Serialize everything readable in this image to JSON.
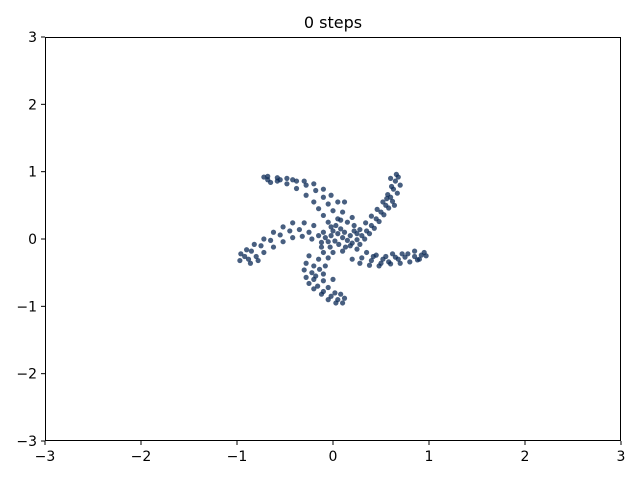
{
  "chart_data": {
    "type": "scatter",
    "title": "0 steps",
    "xlabel": "",
    "ylabel": "",
    "xlim": [
      -3,
      3
    ],
    "ylim": [
      -3,
      3
    ],
    "xticks": [
      -3,
      -2,
      -1,
      0,
      1,
      2,
      3
    ],
    "yticks": [
      -3,
      -2,
      -1,
      0,
      1,
      2,
      3
    ],
    "tick_labels_x": [
      "−3",
      "−2",
      "−1",
      "0",
      "1",
      "2",
      "3"
    ],
    "tick_labels_y": [
      "−3",
      "−2",
      "−1",
      "0",
      "1",
      "2",
      "3"
    ],
    "grid": false,
    "legend": "none",
    "point_color": "#0b2a55",
    "series": [
      {
        "points": [
          [
            0.05,
            0.08
          ],
          [
            0.1,
            0.02
          ],
          [
            0.02,
            -0.03
          ],
          [
            0.12,
            0.1
          ],
          [
            -0.02,
            0.05
          ],
          [
            0.15,
            -0.02
          ],
          [
            0.06,
            -0.08
          ],
          [
            -0.05,
            -0.04
          ],
          [
            0.18,
            0.05
          ],
          [
            0.08,
            0.15
          ],
          [
            0.0,
            0.12
          ],
          [
            -0.08,
            0.02
          ],
          [
            0.2,
            -0.06
          ],
          [
            0.13,
            -0.12
          ],
          [
            -0.03,
            -0.12
          ],
          [
            0.22,
            0.12
          ],
          [
            0.03,
            0.2
          ],
          [
            -0.1,
            0.1
          ],
          [
            0.25,
            -0.01
          ],
          [
            0.1,
            -0.18
          ],
          [
            0.3,
            0.05
          ],
          [
            0.35,
            0.12
          ],
          [
            0.4,
            0.2
          ],
          [
            0.45,
            0.3
          ],
          [
            0.5,
            0.4
          ],
          [
            0.55,
            0.5
          ],
          [
            0.6,
            0.62
          ],
          [
            0.63,
            0.74
          ],
          [
            0.65,
            0.86
          ],
          [
            0.66,
            0.96
          ],
          [
            0.33,
            0.0
          ],
          [
            0.38,
            0.08
          ],
          [
            0.43,
            0.16
          ],
          [
            0.48,
            0.26
          ],
          [
            0.53,
            0.36
          ],
          [
            0.58,
            0.46
          ],
          [
            0.62,
            0.56
          ],
          [
            0.67,
            0.68
          ],
          [
            0.7,
            0.8
          ],
          [
            0.68,
            0.92
          ],
          [
            0.28,
            0.14
          ],
          [
            0.34,
            0.24
          ],
          [
            0.4,
            0.34
          ],
          [
            0.46,
            0.44
          ],
          [
            0.52,
            0.55
          ],
          [
            0.57,
            0.66
          ],
          [
            0.61,
            0.78
          ],
          [
            0.6,
            0.9
          ],
          [
            0.56,
            0.6
          ],
          [
            0.64,
            0.5
          ],
          [
            0.25,
            -0.15
          ],
          [
            0.35,
            -0.2
          ],
          [
            0.45,
            -0.24
          ],
          [
            0.55,
            -0.26
          ],
          [
            0.65,
            -0.27
          ],
          [
            0.75,
            -0.27
          ],
          [
            0.85,
            -0.26
          ],
          [
            0.92,
            -0.24
          ],
          [
            0.97,
            -0.25
          ],
          [
            0.9,
            -0.3
          ],
          [
            0.3,
            -0.28
          ],
          [
            0.4,
            -0.32
          ],
          [
            0.5,
            -0.36
          ],
          [
            0.6,
            -0.37
          ],
          [
            0.7,
            -0.36
          ],
          [
            0.8,
            -0.34
          ],
          [
            0.88,
            -0.31
          ],
          [
            0.95,
            -0.2
          ],
          [
            0.85,
            -0.18
          ],
          [
            0.72,
            -0.22
          ],
          [
            0.2,
            -0.3
          ],
          [
            0.28,
            -0.36
          ],
          [
            0.38,
            -0.39
          ],
          [
            0.48,
            -0.4
          ],
          [
            0.58,
            -0.34
          ],
          [
            0.68,
            -0.3
          ],
          [
            0.78,
            -0.22
          ],
          [
            0.62,
            -0.22
          ],
          [
            0.52,
            -0.3
          ],
          [
            0.42,
            -0.26
          ],
          [
            -0.1,
            -0.2
          ],
          [
            -0.15,
            -0.3
          ],
          [
            -0.2,
            -0.4
          ],
          [
            -0.22,
            -0.5
          ],
          [
            -0.2,
            -0.6
          ],
          [
            -0.16,
            -0.7
          ],
          [
            -0.1,
            -0.78
          ],
          [
            -0.02,
            -0.85
          ],
          [
            0.05,
            -0.9
          ],
          [
            0.1,
            -0.95
          ],
          [
            -0.25,
            -0.25
          ],
          [
            -0.28,
            -0.36
          ],
          [
            -0.3,
            -0.46
          ],
          [
            -0.28,
            -0.57
          ],
          [
            -0.25,
            -0.66
          ],
          [
            -0.2,
            -0.74
          ],
          [
            -0.12,
            -0.82
          ],
          [
            -0.05,
            -0.9
          ],
          [
            0.03,
            -0.95
          ],
          [
            0.12,
            -0.88
          ],
          [
            -0.05,
            -0.28
          ],
          [
            -0.08,
            -0.4
          ],
          [
            -0.1,
            -0.52
          ],
          [
            -0.1,
            -0.62
          ],
          [
            -0.05,
            -0.72
          ],
          [
            0.02,
            -0.8
          ],
          [
            0.08,
            -0.82
          ],
          [
            -0.18,
            -0.55
          ],
          [
            -0.14,
            -0.45
          ],
          [
            0.0,
            -0.6
          ],
          [
            -0.15,
            0.05
          ],
          [
            -0.25,
            0.1
          ],
          [
            -0.35,
            0.14
          ],
          [
            -0.45,
            0.12
          ],
          [
            -0.55,
            0.06
          ],
          [
            -0.65,
            -0.02
          ],
          [
            -0.75,
            -0.1
          ],
          [
            -0.85,
            -0.18
          ],
          [
            -0.92,
            -0.26
          ],
          [
            -0.97,
            -0.32
          ],
          [
            -0.2,
            0.2
          ],
          [
            -0.3,
            0.24
          ],
          [
            -0.42,
            0.24
          ],
          [
            -0.52,
            0.18
          ],
          [
            -0.62,
            0.1
          ],
          [
            -0.72,
            0.0
          ],
          [
            -0.82,
            -0.08
          ],
          [
            -0.9,
            -0.16
          ],
          [
            -0.96,
            -0.22
          ],
          [
            -0.88,
            -0.3
          ],
          [
            -0.12,
            -0.05
          ],
          [
            -0.22,
            0.0
          ],
          [
            -0.32,
            0.04
          ],
          [
            -0.42,
            0.02
          ],
          [
            -0.52,
            -0.04
          ],
          [
            -0.62,
            -0.12
          ],
          [
            -0.72,
            -0.2
          ],
          [
            -0.8,
            -0.26
          ],
          [
            -0.86,
            -0.36
          ],
          [
            -0.78,
            -0.32
          ],
          [
            -0.05,
            0.25
          ],
          [
            -0.1,
            0.35
          ],
          [
            -0.15,
            0.45
          ],
          [
            -0.2,
            0.55
          ],
          [
            -0.28,
            0.65
          ],
          [
            -0.38,
            0.75
          ],
          [
            -0.48,
            0.82
          ],
          [
            -0.58,
            0.86
          ],
          [
            -0.68,
            0.88
          ],
          [
            -0.72,
            0.92
          ],
          [
            0.05,
            0.3
          ],
          [
            0.0,
            0.42
          ],
          [
            -0.05,
            0.52
          ],
          [
            -0.1,
            0.62
          ],
          [
            -0.18,
            0.72
          ],
          [
            -0.28,
            0.8
          ],
          [
            -0.38,
            0.86
          ],
          [
            -0.48,
            0.9
          ],
          [
            -0.58,
            0.91
          ],
          [
            -0.68,
            0.93
          ],
          [
            0.1,
            0.4
          ],
          [
            0.05,
            0.55
          ],
          [
            -0.02,
            0.65
          ],
          [
            -0.1,
            0.74
          ],
          [
            -0.2,
            0.82
          ],
          [
            -0.3,
            0.86
          ],
          [
            -0.42,
            0.88
          ],
          [
            -0.55,
            0.88
          ],
          [
            -0.65,
            0.84
          ],
          [
            0.12,
            0.55
          ],
          [
            0.15,
            0.25
          ],
          [
            0.22,
            0.2
          ],
          [
            0.2,
            0.32
          ],
          [
            -0.02,
            0.18
          ],
          [
            0.08,
            0.28
          ],
          [
            0.25,
            0.08
          ],
          [
            0.18,
            -0.1
          ],
          [
            0.28,
            -0.08
          ],
          [
            -0.12,
            -0.12
          ],
          [
            0.0,
            -0.2
          ]
        ]
      }
    ]
  }
}
